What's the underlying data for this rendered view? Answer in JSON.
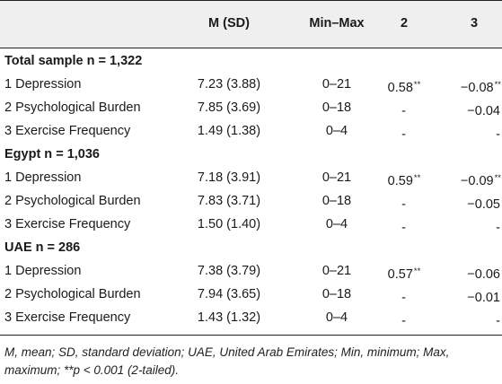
{
  "header": {
    "col_m": "M (SD)",
    "col_minmax": "Min–Max",
    "col_2": "2",
    "col_3": "3"
  },
  "sections": [
    {
      "title": "Total sample n = 1,322",
      "rows": [
        {
          "name": "1 Depression",
          "m": "7.23 (3.88)",
          "minmax": "0–21",
          "c2": "0.58",
          "c2_sup": "**",
          "c3": "−0.08",
          "c3_sup": "**"
        },
        {
          "name": "2 Psychological Burden",
          "m": "7.85 (3.69)",
          "minmax": "0–18",
          "c2": "-",
          "c2_sup": "",
          "c3": "−0.04",
          "c3_sup": ""
        },
        {
          "name": "3 Exercise Frequency",
          "m": "1.49 (1.38)",
          "minmax": "0–4",
          "c2": "-",
          "c2_sup": "",
          "c3": "-",
          "c3_sup": ""
        }
      ]
    },
    {
      "title": "Egypt n = 1,036",
      "rows": [
        {
          "name": "1 Depression",
          "m": "7.18 (3.91)",
          "minmax": "0–21",
          "c2": "0.59",
          "c2_sup": "**",
          "c3": "−0.09",
          "c3_sup": "**"
        },
        {
          "name": "2 Psychological Burden",
          "m": "7.83 (3.71)",
          "minmax": "0–18",
          "c2": "-",
          "c2_sup": "",
          "c3": "−0.05",
          "c3_sup": ""
        },
        {
          "name": "3 Exercise Frequency",
          "m": "1.50 (1.40)",
          "minmax": "0–4",
          "c2": "-",
          "c2_sup": "",
          "c3": "-",
          "c3_sup": ""
        }
      ]
    },
    {
      "title": "UAE n = 286",
      "rows": [
        {
          "name": "1 Depression",
          "m": "7.38 (3.79)",
          "minmax": "0–21",
          "c2": "0.57",
          "c2_sup": "**",
          "c3": "−0.06",
          "c3_sup": ""
        },
        {
          "name": "2 Psychological Burden",
          "m": "7.94 (3.65)",
          "minmax": "0–18",
          "c2": "-",
          "c2_sup": "",
          "c3": "−0.01",
          "c3_sup": ""
        },
        {
          "name": "3 Exercise Frequency",
          "m": "1.43 (1.32)",
          "minmax": "0–4",
          "c2": "-",
          "c2_sup": "",
          "c3": "-",
          "c3_sup": ""
        }
      ]
    }
  ],
  "footnote": "M, mean; SD, standard deviation; UAE, United Arab Emirates; Min, minimum; Max, maximum; **p < 0.001 (2-tailed)."
}
